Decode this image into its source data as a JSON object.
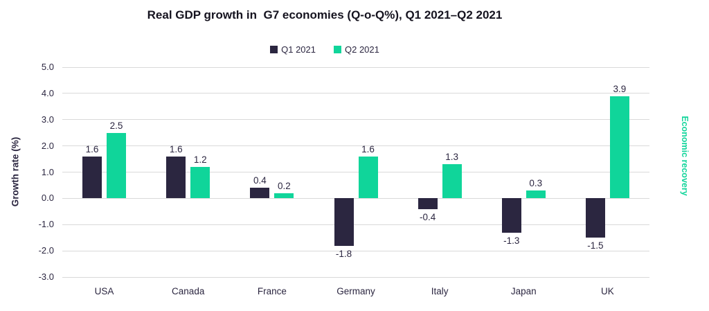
{
  "figure": {
    "background": "#ffffff",
    "text_color": "#2b2640",
    "title_color": "#15131f"
  },
  "chart_data": {
    "type": "bar",
    "title": "Real GDP growth in  G7 economies (Q-o-Q%), Q1 2021–Q2 2021",
    "categories": [
      "USA",
      "Canada",
      "France",
      "Germany",
      "Italy",
      "Japan",
      "UK"
    ],
    "series": [
      {
        "name": "Q1 2021",
        "color": "#2b2640",
        "values": [
          1.6,
          1.6,
          0.4,
          -1.8,
          -0.4,
          -1.3,
          -1.5
        ]
      },
      {
        "name": "Q2 2021",
        "color": "#10d59a",
        "values": [
          2.5,
          1.2,
          0.2,
          1.6,
          1.3,
          0.3,
          3.9
        ]
      }
    ],
    "xlabel": "",
    "ylabel": "Growth rate (%)",
    "ylim": [
      -3,
      5
    ],
    "yticks": [
      "5.0",
      "4.0",
      "3.0",
      "2.0",
      "1.0",
      "0.0",
      "-1.0",
      "-2.0",
      "-3.0"
    ],
    "grid": true,
    "gridline_color": "#d9d9d9",
    "legend_position": "top-center",
    "value_labels": true,
    "annotation": {
      "text": "Economic recovery",
      "color": "#10d59a",
      "orientation": "vertical-right-edge"
    }
  }
}
